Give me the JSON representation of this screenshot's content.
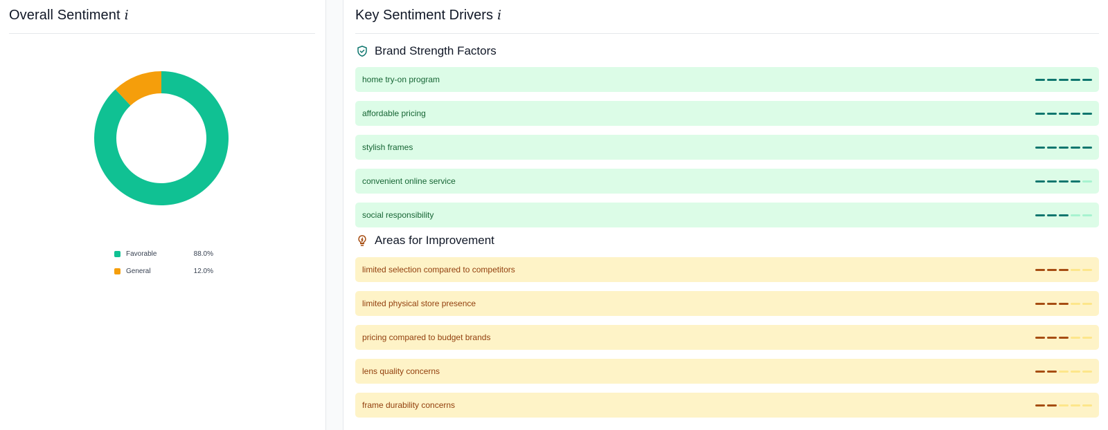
{
  "sentiment_panel": {
    "title": "Overall Sentiment",
    "info_glyph": "i",
    "legend": [
      {
        "label": "Favorable",
        "value": "88.0%",
        "color": "#10c193"
      },
      {
        "label": "General",
        "value": "12.0%",
        "color": "#f59e0b"
      }
    ]
  },
  "chart_data": {
    "type": "pie",
    "categories": [
      "Favorable",
      "General"
    ],
    "values": [
      88.0,
      12.0
    ],
    "colors": [
      "#10c193",
      "#f59e0b"
    ],
    "title": "",
    "donut": true
  },
  "drivers_panel": {
    "title": "Key Sentiment Drivers",
    "info_glyph": "i",
    "strengths": {
      "heading": "Brand Strength Factors",
      "icon": "shield-check-icon",
      "items": [
        {
          "label": "home try-on program",
          "level": 5
        },
        {
          "label": "affordable pricing",
          "level": 5
        },
        {
          "label": "stylish frames",
          "level": 5
        },
        {
          "label": "convenient online service",
          "level": 4
        },
        {
          "label": "social responsibility",
          "level": 3
        }
      ]
    },
    "improvements": {
      "heading": "Areas for Improvement",
      "icon": "lightbulb-icon",
      "items": [
        {
          "label": "limited selection compared to competitors",
          "level": 3
        },
        {
          "label": "limited physical store presence",
          "level": 3
        },
        {
          "label": "pricing compared to budget brands",
          "level": 3
        },
        {
          "label": "lens quality concerns",
          "level": 2
        },
        {
          "label": "frame durability concerns",
          "level": 2
        }
      ]
    },
    "level_max": 5
  },
  "colors": {
    "favorable": "#10c193",
    "general": "#f59e0b",
    "strength_bg": "#dcfce7",
    "improvement_bg": "#fef3c7"
  }
}
